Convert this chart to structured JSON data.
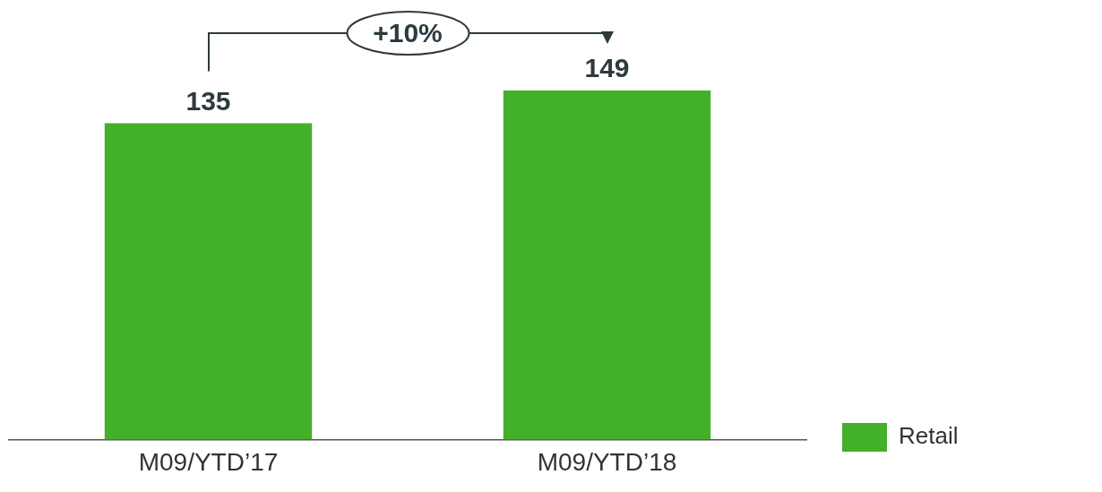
{
  "chart_data": {
    "type": "bar",
    "categories": [
      "M09/YTD’17",
      "M09/YTD’18"
    ],
    "series": [
      {
        "name": "Retail",
        "color": "#43b02a",
        "values": [
          135,
          149
        ]
      }
    ],
    "data_labels": true,
    "legend": "bottom right",
    "annotations": [
      "+10%"
    ]
  }
}
